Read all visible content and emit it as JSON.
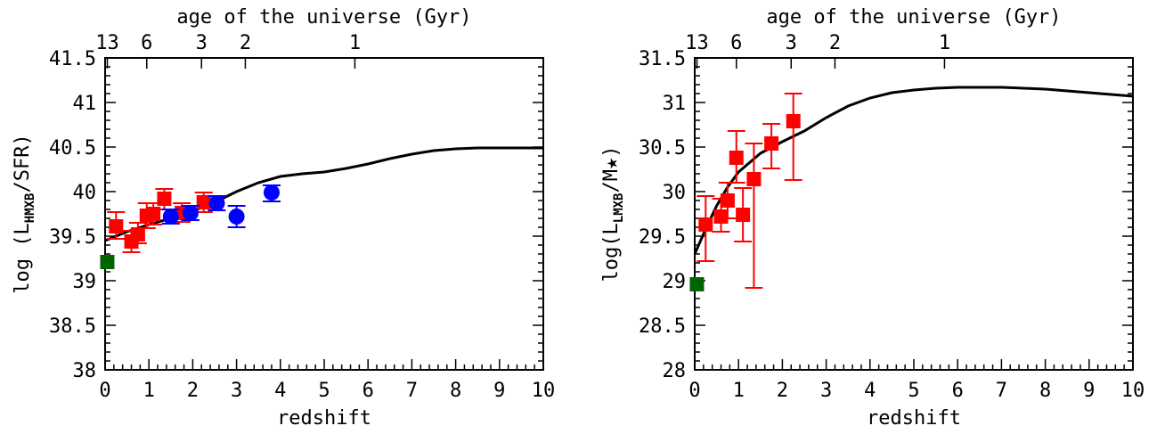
{
  "colors": {
    "red": "#ff0000",
    "blue": "#0000ff",
    "green": "#006400",
    "black": "#000000"
  },
  "chart_data": [
    {
      "type": "scatter",
      "xlabel": "redshift",
      "ylabel_prefix": "log (L",
      "ylabel_sub": "HMXB",
      "ylabel_suffix": "/SFR)",
      "top_axis_label": "age of the universe (Gyr)",
      "top_ticks": [
        {
          "label": "13",
          "z": 0.05
        },
        {
          "label": "6",
          "z": 0.95
        },
        {
          "label": "3",
          "z": 2.2
        },
        {
          "label": "2",
          "z": 3.2
        },
        {
          "label": "1",
          "z": 5.7
        }
      ],
      "xlim": [
        0,
        10
      ],
      "ylim": [
        38,
        41.5
      ],
      "x_ticks": [
        0,
        1,
        2,
        3,
        4,
        5,
        6,
        7,
        8,
        9,
        10
      ],
      "y_ticks": [
        38,
        38.5,
        39,
        39.5,
        40,
        40.5,
        41,
        41.5
      ],
      "series": [
        {
          "marker": "square",
          "color": "red",
          "points": [
            {
              "x": 0.25,
              "y": 39.61,
              "yerr": [
                0.14,
                0.16
              ]
            },
            {
              "x": 0.6,
              "y": 39.44,
              "yerr": [
                0.12,
                0.12
              ]
            },
            {
              "x": 0.75,
              "y": 39.52,
              "yerr": [
                0.1,
                0.13
              ]
            },
            {
              "x": 0.95,
              "y": 39.73,
              "yerr": [
                0.14,
                0.14
              ]
            },
            {
              "x": 1.1,
              "y": 39.75,
              "yerr": [
                0.12,
                0.12
              ]
            },
            {
              "x": 1.35,
              "y": 39.92,
              "yerr": [
                0.12,
                0.11
              ]
            },
            {
              "x": 1.75,
              "y": 39.76,
              "yerr": [
                0.1,
                0.11
              ]
            },
            {
              "x": 2.25,
              "y": 39.88,
              "yerr": [
                0.11,
                0.11
              ]
            }
          ]
        },
        {
          "marker": "circle",
          "color": "blue",
          "points": [
            {
              "x": 1.5,
              "y": 39.72,
              "yerr": [
                0.08,
                0.08
              ]
            },
            {
              "x": 1.95,
              "y": 39.76,
              "yerr": [
                0.08,
                0.08
              ]
            },
            {
              "x": 2.55,
              "y": 39.87,
              "yerr": [
                0.08,
                0.08
              ]
            },
            {
              "x": 3.0,
              "y": 39.72,
              "yerr": [
                0.12,
                0.12
              ]
            },
            {
              "x": 3.8,
              "y": 39.99,
              "yerr": [
                0.1,
                0.08
              ]
            }
          ]
        },
        {
          "marker": "square",
          "color": "green",
          "points": [
            {
              "x": 0.05,
              "y": 39.21,
              "yerr": [
                0,
                0
              ]
            }
          ]
        }
      ],
      "model_curve": {
        "x": [
          0,
          0.5,
          1,
          1.5,
          2,
          2.5,
          3,
          3.5,
          4,
          4.5,
          5,
          5.5,
          6,
          6.5,
          7,
          7.5,
          8,
          8.5,
          9,
          9.5,
          10
        ],
        "y": [
          39.45,
          39.55,
          39.63,
          39.7,
          39.78,
          39.88,
          40.0,
          40.1,
          40.17,
          40.2,
          40.22,
          40.26,
          40.31,
          40.37,
          40.42,
          40.46,
          40.48,
          40.49,
          40.49,
          40.49,
          40.49
        ]
      }
    },
    {
      "type": "scatter",
      "xlabel": "redshift",
      "ylabel_prefix": "log(L",
      "ylabel_sub": "LMXB",
      "ylabel_suffix": "/M★)",
      "top_axis_label": "age of the universe (Gyr)",
      "top_ticks": [
        {
          "label": "13",
          "z": 0.05
        },
        {
          "label": "6",
          "z": 0.95
        },
        {
          "label": "3",
          "z": 2.2
        },
        {
          "label": "2",
          "z": 3.2
        },
        {
          "label": "1",
          "z": 5.7
        }
      ],
      "xlim": [
        0,
        10
      ],
      "ylim": [
        28,
        31.5
      ],
      "x_ticks": [
        0,
        1,
        2,
        3,
        4,
        5,
        6,
        7,
        8,
        9,
        10
      ],
      "y_ticks": [
        28,
        28.5,
        29,
        29.5,
        30,
        30.5,
        31,
        31.5
      ],
      "series": [
        {
          "marker": "square",
          "color": "red",
          "points": [
            {
              "x": 0.25,
              "y": 29.63,
              "yerr": [
                0.41,
                0.32
              ]
            },
            {
              "x": 0.6,
              "y": 29.72,
              "yerr": [
                0.17,
                0.2
              ]
            },
            {
              "x": 0.75,
              "y": 29.9,
              "yerr": [
                0.2,
                0.2
              ]
            },
            {
              "x": 0.95,
              "y": 30.38,
              "yerr": [
                0.28,
                0.3
              ]
            },
            {
              "x": 1.1,
              "y": 29.74,
              "yerr": [
                0.3,
                0.3
              ]
            },
            {
              "x": 1.35,
              "y": 30.14,
              "yerr": [
                1.22,
                0.4
              ]
            },
            {
              "x": 1.75,
              "y": 30.54,
              "yerr": [
                0.28,
                0.22
              ]
            },
            {
              "x": 2.25,
              "y": 30.79,
              "yerr": [
                0.66,
                0.31
              ]
            }
          ]
        },
        {
          "marker": "square",
          "color": "green",
          "points": [
            {
              "x": 0.05,
              "y": 28.96,
              "yerr": [
                0,
                0
              ]
            }
          ]
        }
      ],
      "model_curve": {
        "x": [
          0,
          0.25,
          0.5,
          0.75,
          1,
          1.5,
          2,
          2.5,
          3,
          3.5,
          4,
          4.5,
          5,
          5.5,
          6,
          6.5,
          7,
          7.5,
          8,
          8.5,
          9,
          9.5,
          10
        ],
        "y": [
          29.3,
          29.58,
          29.84,
          30.05,
          30.22,
          30.43,
          30.56,
          30.68,
          30.83,
          30.96,
          31.05,
          31.11,
          31.14,
          31.16,
          31.17,
          31.17,
          31.17,
          31.16,
          31.15,
          31.13,
          31.11,
          31.09,
          31.07
        ]
      }
    }
  ]
}
